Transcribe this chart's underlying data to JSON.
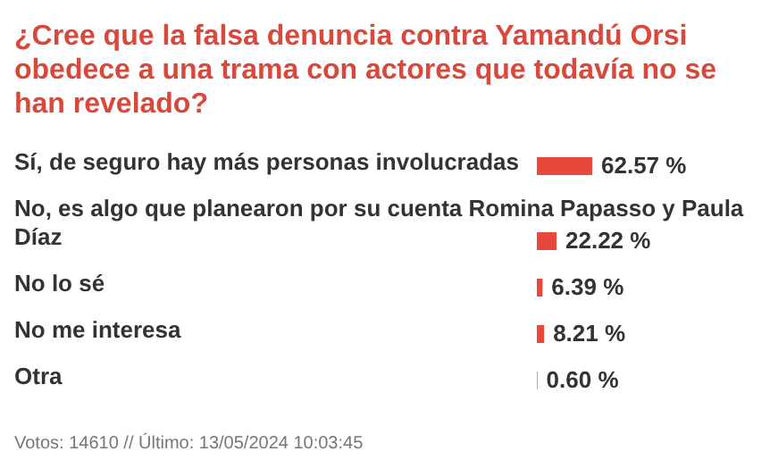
{
  "chart_data": {
    "type": "bar",
    "orientation": "horizontal",
    "title": "¿Cree que la falsa denuncia contra Yamandú Orsi obedece a una trama con actores que todavía no se han revelado?",
    "categories": [
      "Sí, de seguro hay más personas involucradas",
      "No, es algo que planearon por su cuenta Romina Papasso y Paula Díaz",
      "No lo sé",
      "No me interesa",
      "Otra"
    ],
    "values": [
      62.57,
      22.22,
      6.39,
      8.21,
      0.6
    ],
    "value_labels": [
      "62.57 %",
      "22.22 %",
      "6.39 %",
      "8.21 %",
      "0.60 %"
    ],
    "color": "#e8483c",
    "annotations": [
      "Votos: 14610 // Último: 13/05/2024 10:03:45"
    ]
  }
}
